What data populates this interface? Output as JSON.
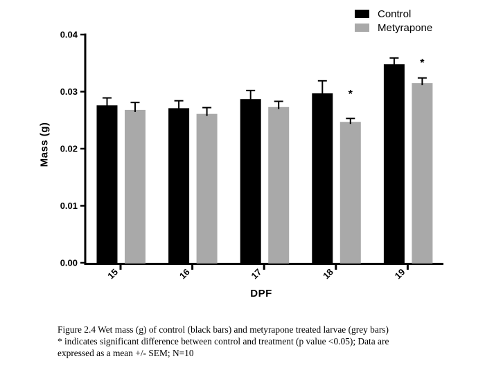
{
  "chart_data": {
    "type": "bar",
    "title": "",
    "xlabel": "DPF",
    "ylabel": "Mass (g)",
    "categories": [
      "15",
      "16",
      "17",
      "18",
      "19"
    ],
    "series": [
      {
        "name": "Control",
        "color": "#000000",
        "values": [
          0.0276,
          0.0271,
          0.0287,
          0.0297,
          0.0348
        ],
        "sem": [
          0.0013,
          0.0013,
          0.0015,
          0.0022,
          0.0011
        ]
      },
      {
        "name": "Metyrapone",
        "color": "#a9a9a9",
        "values": [
          0.0268,
          0.0261,
          0.0273,
          0.0247,
          0.0315
        ],
        "sem": [
          0.0013,
          0.0011,
          0.001,
          0.0006,
          0.0009
        ]
      }
    ],
    "error_bars": "mean +/- SEM, upper whisker only",
    "significance_marker": "*",
    "significance": [
      {
        "category": "18",
        "series": "Metyrapone",
        "marker": "*",
        "marker_value": 0.029
      },
      {
        "category": "19",
        "series": "Metyrapone",
        "marker": "*",
        "marker_value": 0.0344
      }
    ],
    "ylim": [
      0,
      0.04
    ],
    "yticks": [
      0,
      0.01,
      0.02,
      0.03,
      0.04
    ],
    "ytick_labels": [
      "0.00",
      "0.01",
      "0.02",
      "0.03",
      "0.04"
    ],
    "grid": false,
    "legend_position": "top-right",
    "axis_color": "#000000"
  },
  "figure": {
    "caption_lines": [
      "Figure 2.4 Wet mass (g) of control (black bars) and metyrapone treated larvae (grey bars)",
      "* indicates significant difference between control and treatment (p value <0.05); Data are",
      "expressed as a mean +/- SEM; N=10"
    ]
  }
}
